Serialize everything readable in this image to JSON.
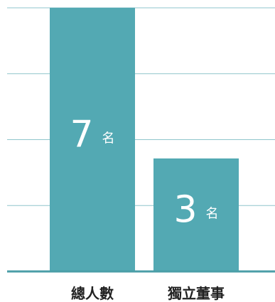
{
  "chart_data": {
    "type": "bar",
    "categories": [
      "總人數",
      "獨立董事"
    ],
    "values": [
      7,
      3
    ],
    "unit": "名",
    "ylim": [
      0,
      7
    ],
    "grid": true,
    "legend": "none"
  },
  "colors": {
    "bar": "#53a9b3",
    "gridline": "#8fc6cc",
    "baseline": "#4a9ea7",
    "value_text": "#ffffff",
    "category_text": "#222222"
  }
}
